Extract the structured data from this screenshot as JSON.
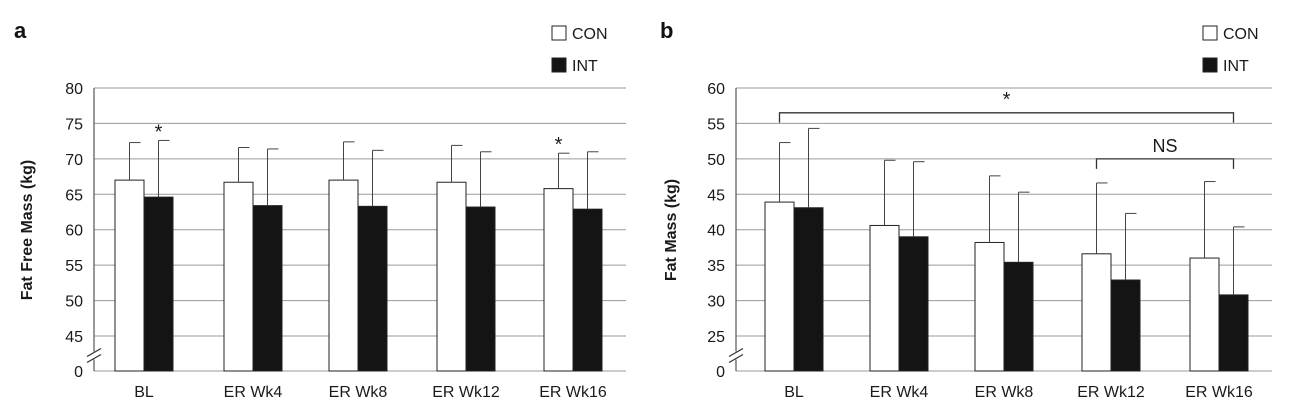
{
  "chart_data": [
    {
      "type": "bar",
      "panel_label": "a",
      "ylabel": "Fat Free Mass (kg)",
      "categories": [
        "BL",
        "ER Wk4",
        "ER Wk8",
        "ER Wk12",
        "ER Wk16"
      ],
      "yticks": [
        80,
        75,
        70,
        65,
        60,
        55,
        50,
        45,
        0
      ],
      "axis_break": true,
      "ylim": [
        42,
        80
      ],
      "grid": true,
      "legend_position": "top-right",
      "series": [
        {
          "name": "CON",
          "color": "#ffffff",
          "values": [
            67.0,
            66.7,
            67.0,
            66.7,
            65.8
          ],
          "errors": [
            5.3,
            4.9,
            5.4,
            5.2,
            5.0
          ]
        },
        {
          "name": "INT",
          "color": "#141414",
          "values": [
            64.6,
            63.4,
            63.3,
            63.2,
            62.9
          ],
          "errors": [
            8.0,
            8.0,
            7.9,
            7.8,
            8.1
          ]
        }
      ],
      "annotations": [
        {
          "text": "*",
          "category": "BL",
          "series": "INT"
        },
        {
          "text": "*",
          "category": "ER Wk16",
          "series": "CON"
        }
      ]
    },
    {
      "type": "bar",
      "panel_label": "b",
      "ylabel": "Fat Mass (kg)",
      "categories": [
        "BL",
        "ER Wk4",
        "ER Wk8",
        "ER Wk12",
        "ER Wk16"
      ],
      "yticks": [
        60,
        55,
        50,
        45,
        40,
        35,
        30,
        25,
        0
      ],
      "axis_break": true,
      "ylim": [
        21,
        60
      ],
      "grid": true,
      "legend_position": "top-right",
      "series": [
        {
          "name": "CON",
          "color": "#ffffff",
          "values": [
            43.9,
            40.6,
            38.2,
            36.6,
            36.0
          ],
          "errors": [
            8.4,
            9.2,
            9.4,
            10.0,
            10.8
          ]
        },
        {
          "name": "INT",
          "color": "#141414",
          "values": [
            43.1,
            39.0,
            35.4,
            32.9,
            30.8
          ],
          "errors": [
            11.2,
            10.6,
            9.9,
            9.4,
            9.6
          ]
        }
      ],
      "brackets": [
        {
          "text": "*",
          "from": "BL",
          "to": "ER Wk16",
          "y": 56.5
        },
        {
          "text": "NS",
          "from": "ER Wk12",
          "to": "ER Wk16",
          "y": 50.0
        }
      ]
    }
  ]
}
